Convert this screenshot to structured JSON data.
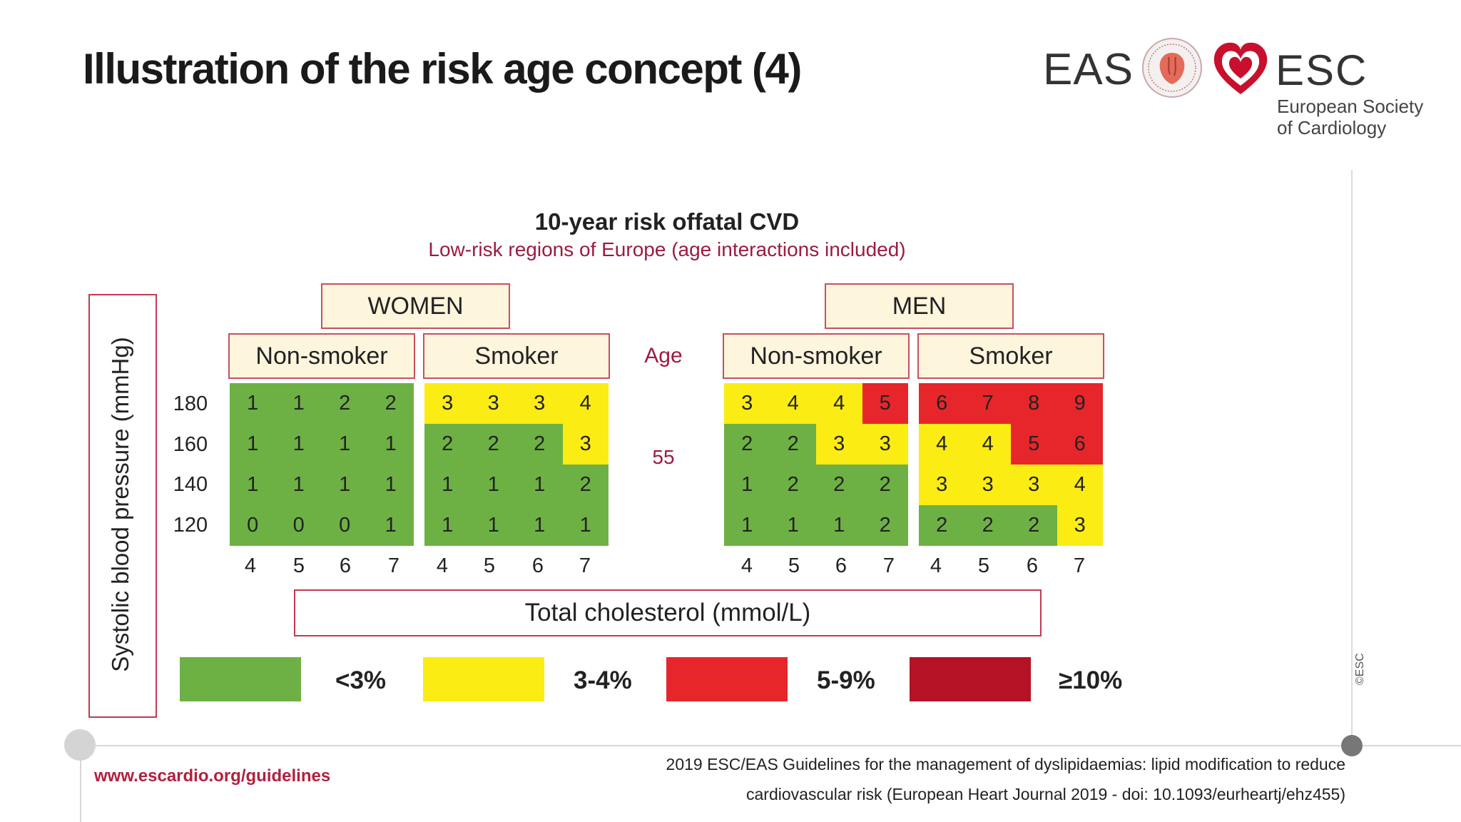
{
  "header": {
    "title": "Illustration of the risk age concept (4)",
    "logos": {
      "eas_text": "EAS",
      "esc_text": "ESC",
      "esc_subtitle_line1": "European Society",
      "esc_subtitle_line2": "of Cardiology",
      "eas_seal_icon": "eas-seal-icon",
      "esc_heart_icon": "esc-heart-icon"
    }
  },
  "chart": {
    "title": "10-year risk offatal CVD",
    "subtitle": "Low-risk regions of Europe  (age interactions included)",
    "ylabel": "Systolic blood pressure (mmHg)",
    "xlabel": "Total cholesterol (mmol/L)",
    "age_label": "Age",
    "age_value": "55",
    "bp_values": [
      "180",
      "160",
      "140",
      "120"
    ],
    "cholesterol_values": [
      "4",
      "5",
      "6",
      "7"
    ],
    "sex_headers": [
      "WOMEN",
      "MEN"
    ],
    "smoking_headers": [
      "Non-smoker",
      "Smoker",
      "Non-smoker",
      "Smoker"
    ],
    "colors": {
      "green": "#6db144",
      "yellow": "#fbec14",
      "red": "#e7262b",
      "dark_red": "#b51226"
    },
    "panels": [
      {
        "sex": "WOMEN",
        "smoking": "Non-smoker",
        "values": [
          [
            "1",
            "1",
            "2",
            "2"
          ],
          [
            "1",
            "1",
            "1",
            "1"
          ],
          [
            "1",
            "1",
            "1",
            "1"
          ],
          [
            "0",
            "0",
            "0",
            "1"
          ]
        ],
        "categories": [
          [
            "g",
            "g",
            "g",
            "g"
          ],
          [
            "g",
            "g",
            "g",
            "g"
          ],
          [
            "g",
            "g",
            "g",
            "g"
          ],
          [
            "g",
            "g",
            "g",
            "g"
          ]
        ]
      },
      {
        "sex": "WOMEN",
        "smoking": "Smoker",
        "values": [
          [
            "3",
            "3",
            "3",
            "4"
          ],
          [
            "2",
            "2",
            "2",
            "3"
          ],
          [
            "1",
            "1",
            "1",
            "2"
          ],
          [
            "1",
            "1",
            "1",
            "1"
          ]
        ],
        "categories": [
          [
            "y",
            "y",
            "y",
            "y"
          ],
          [
            "g",
            "g",
            "g",
            "y"
          ],
          [
            "g",
            "g",
            "g",
            "g"
          ],
          [
            "g",
            "g",
            "g",
            "g"
          ]
        ]
      },
      {
        "sex": "MEN",
        "smoking": "Non-smoker",
        "values": [
          [
            "3",
            "4",
            "4",
            "5"
          ],
          [
            "2",
            "2",
            "3",
            "3"
          ],
          [
            "1",
            "2",
            "2",
            "2"
          ],
          [
            "1",
            "1",
            "1",
            "2"
          ]
        ],
        "categories": [
          [
            "y",
            "y",
            "y",
            "r"
          ],
          [
            "g",
            "g",
            "y",
            "y"
          ],
          [
            "g",
            "g",
            "g",
            "g"
          ],
          [
            "g",
            "g",
            "g",
            "g"
          ]
        ]
      },
      {
        "sex": "MEN",
        "smoking": "Smoker",
        "values": [
          [
            "6",
            "7",
            "8",
            "9"
          ],
          [
            "4",
            "4",
            "5",
            "6"
          ],
          [
            "3",
            "3",
            "3",
            "4"
          ],
          [
            "2",
            "2",
            "2",
            "3"
          ]
        ],
        "categories": [
          [
            "r",
            "r",
            "r",
            "r"
          ],
          [
            "y",
            "y",
            "r",
            "r"
          ],
          [
            "y",
            "y",
            "y",
            "y"
          ],
          [
            "g",
            "g",
            "g",
            "y"
          ]
        ]
      }
    ],
    "legend": [
      {
        "label": "<3%",
        "color": "#6db144"
      },
      {
        "label": "3-4%",
        "color": "#fbec14"
      },
      {
        "label": "5-9%",
        "color": "#e7262b"
      },
      {
        "label": "≥10%",
        "color": "#b51226"
      }
    ]
  },
  "footer": {
    "url": "www.escardio.org/guidelines",
    "reference_line1": "2019 ESC/EAS Guidelines for the management of dyslipidaemias: lipid modification to reduce",
    "reference_line2": "cardiovascular risk (European Heart Journal 2019 - doi: 10.1093/eurheartj/ehz455)",
    "copyright": "©ESC"
  }
}
